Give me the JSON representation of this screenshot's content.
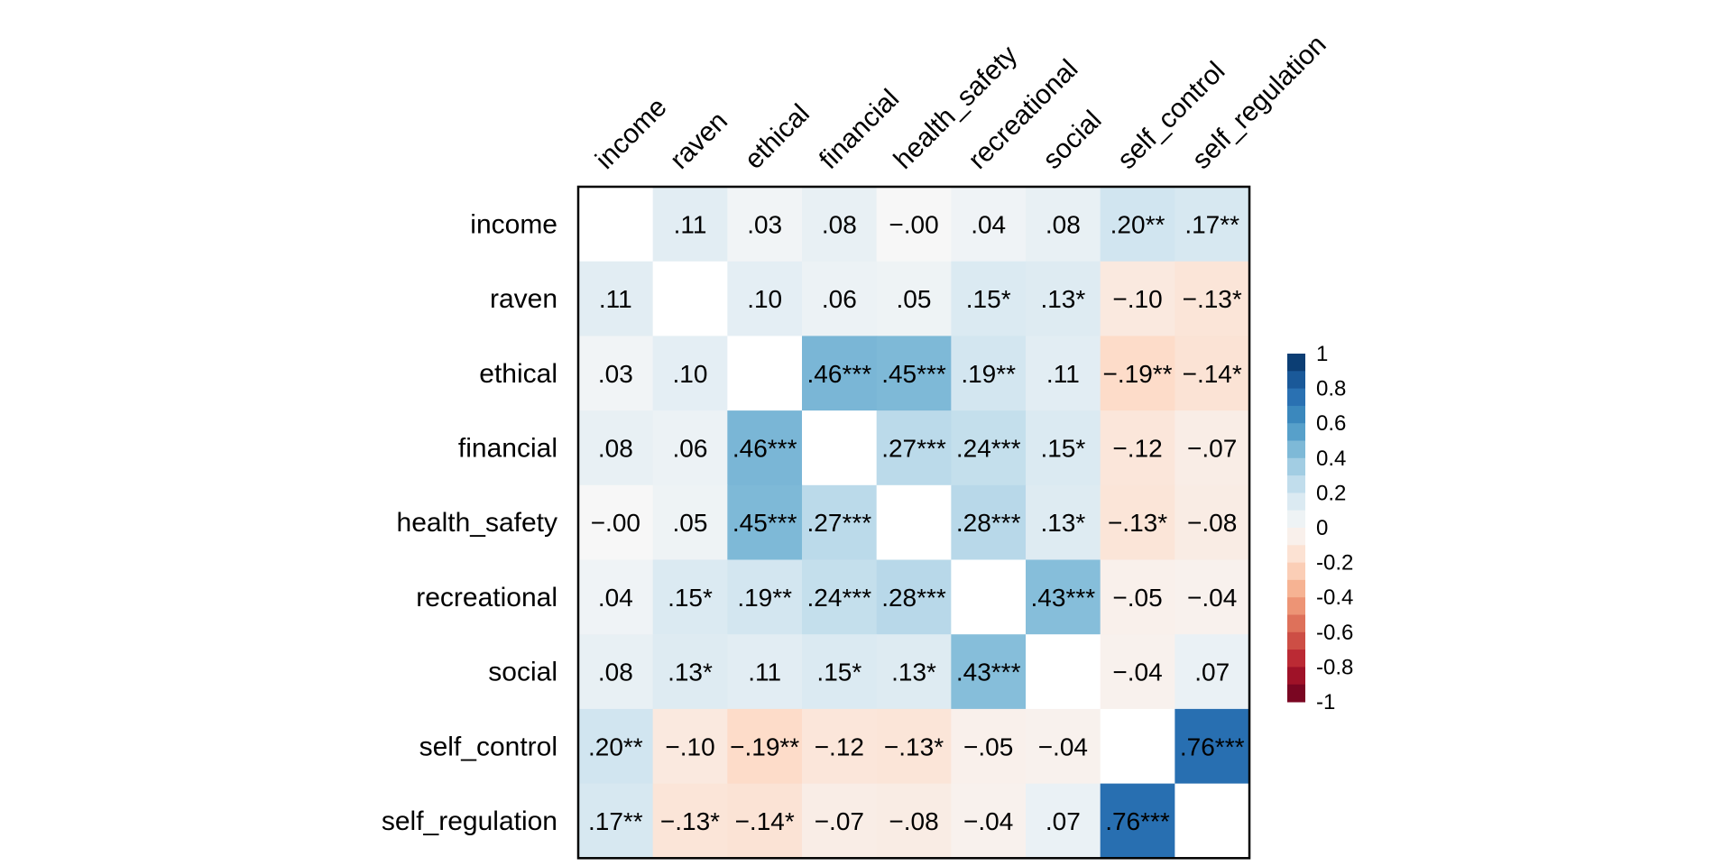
{
  "chart_data": {
    "type": "heatmap",
    "variables": [
      "income",
      "raven",
      "ethical",
      "financial",
      "health_safety",
      "recreational",
      "social",
      "self_control",
      "self_regulation"
    ],
    "values": [
      [
        null,
        0.11,
        0.03,
        0.08,
        -0.0,
        0.04,
        0.08,
        0.2,
        0.17
      ],
      [
        0.11,
        null,
        0.1,
        0.06,
        0.05,
        0.15,
        0.13,
        -0.1,
        -0.13
      ],
      [
        0.03,
        0.1,
        null,
        0.46,
        0.45,
        0.19,
        0.11,
        -0.19,
        -0.14
      ],
      [
        0.08,
        0.06,
        0.46,
        null,
        0.27,
        0.24,
        0.15,
        -0.12,
        -0.07
      ],
      [
        -0.0,
        0.05,
        0.45,
        0.27,
        null,
        0.28,
        0.13,
        -0.13,
        -0.08
      ],
      [
        0.04,
        0.15,
        0.19,
        0.24,
        0.28,
        null,
        0.43,
        -0.05,
        -0.04
      ],
      [
        0.08,
        0.13,
        0.11,
        0.15,
        0.13,
        0.43,
        null,
        -0.04,
        0.07
      ],
      [
        0.2,
        -0.1,
        -0.19,
        -0.12,
        -0.13,
        -0.05,
        -0.04,
        null,
        0.76
      ],
      [
        0.17,
        -0.13,
        -0.14,
        -0.07,
        -0.08,
        -0.04,
        0.07,
        0.76,
        null
      ]
    ],
    "cell_labels": [
      [
        "",
        ".11",
        ".03",
        ".08",
        "−.00",
        ".04",
        ".08",
        ".20**",
        ".17**"
      ],
      [
        ".11",
        "",
        ".10",
        ".06",
        ".05",
        ".15*",
        ".13*",
        "−.10",
        "−.13*"
      ],
      [
        ".03",
        ".10",
        "",
        ".46***",
        ".45***",
        ".19**",
        ".11",
        "−.19**",
        "−.14*"
      ],
      [
        ".08",
        ".06",
        ".46***",
        "",
        ".27***",
        ".24***",
        ".15*",
        "−.12",
        "−.07"
      ],
      [
        "−.00",
        ".05",
        ".45***",
        ".27***",
        "",
        ".28***",
        ".13*",
        "−.13*",
        "−.08"
      ],
      [
        ".04",
        ".15*",
        ".19**",
        ".24***",
        ".28***",
        "",
        ".43***",
        "−.05",
        "−.04"
      ],
      [
        ".08",
        ".13*",
        ".11",
        ".15*",
        ".13*",
        ".43***",
        "",
        "−.04",
        ".07"
      ],
      [
        ".20**",
        "−.10",
        "−.19**",
        "−.12",
        "−.13*",
        "−.05",
        "−.04",
        "",
        ".76***"
      ],
      [
        ".17**",
        "−.13*",
        "−.14*",
        "−.07",
        "−.08",
        "−.04",
        ".07",
        ".76***",
        ""
      ]
    ],
    "color_scale": {
      "min": -1,
      "max": 1,
      "ticks": [
        "1",
        "0.8",
        "0.6",
        "0.4",
        "0.2",
        "0",
        "-0.2",
        "-0.4",
        "-0.6",
        "-0.8",
        "-1"
      ],
      "colors": [
        "#053061",
        "#2166ac",
        "#4393c3",
        "#92c5de",
        "#d1e5f0",
        "#f7f7f7",
        "#fddbc7",
        "#f4a582",
        "#d6604d",
        "#b2182b",
        "#67001f"
      ]
    },
    "legend_position": "right"
  }
}
